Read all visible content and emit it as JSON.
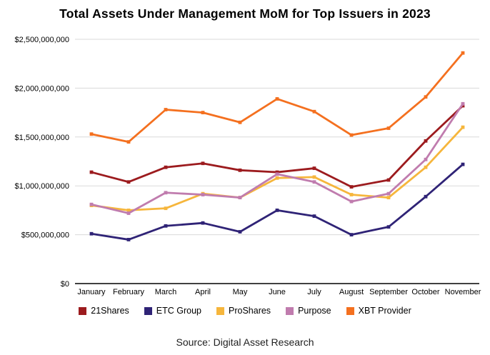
{
  "chart_data": {
    "type": "line",
    "title": "Total Assets Under Management MoM for Top Issuers in 2023",
    "categories": [
      "January",
      "February",
      "March",
      "April",
      "May",
      "June",
      "July",
      "August",
      "September",
      "October",
      "November"
    ],
    "series": [
      {
        "name": "21Shares",
        "color": "#9C1B1E",
        "values": [
          1140000000,
          1040000000,
          1190000000,
          1230000000,
          1160000000,
          1140000000,
          1180000000,
          990000000,
          1060000000,
          1460000000,
          1820000000
        ]
      },
      {
        "name": "ETC Group",
        "color": "#2F2376",
        "values": [
          510000000,
          450000000,
          590000000,
          620000000,
          530000000,
          750000000,
          690000000,
          500000000,
          580000000,
          890000000,
          1220000000
        ]
      },
      {
        "name": "ProShares",
        "color": "#F6B63C",
        "values": [
          800000000,
          750000000,
          770000000,
          920000000,
          880000000,
          1080000000,
          1090000000,
          910000000,
          880000000,
          1190000000,
          1600000000
        ]
      },
      {
        "name": "Purpose",
        "color": "#C07CAE",
        "values": [
          810000000,
          720000000,
          930000000,
          910000000,
          880000000,
          1120000000,
          1040000000,
          840000000,
          920000000,
          1270000000,
          1840000000
        ]
      },
      {
        "name": "XBT Provider",
        "color": "#F4701F",
        "values": [
          1530000000,
          1450000000,
          1780000000,
          1750000000,
          1650000000,
          1890000000,
          1760000000,
          1520000000,
          1590000000,
          1910000000,
          2360000000
        ]
      }
    ],
    "y_ticks": [
      {
        "value": 0,
        "label": "$0"
      },
      {
        "value": 500000000,
        "label": "$500,000,000"
      },
      {
        "value": 1000000000,
        "label": "$1,000,000,000"
      },
      {
        "value": 1500000000,
        "label": "$1,500,000,000"
      },
      {
        "value": 2000000000,
        "label": "$2,000,000,000"
      },
      {
        "value": 2500000000,
        "label": "$2,500,000,000"
      }
    ],
    "ylim": [
      0,
      2500000000
    ],
    "xlabel": "",
    "ylabel": "",
    "grid": true,
    "legend_position": "bottom",
    "colors": {
      "gridline": "#DADADA",
      "axis": "#000000",
      "background": "#FFFFFF"
    }
  },
  "source": {
    "label": "Source: Digital Asset Research"
  }
}
